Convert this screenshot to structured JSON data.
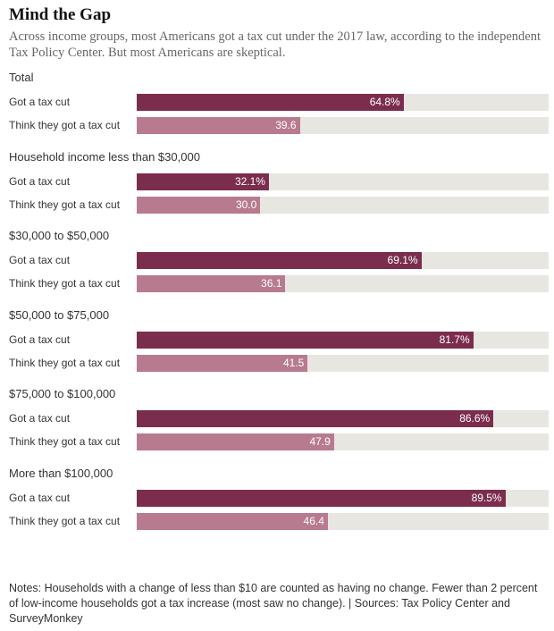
{
  "title": "Mind the Gap",
  "subtitle": "Across income groups, most Americans got a tax cut under the 2017 law, according to the independent Tax Policy Center. But most Americans are skeptical.",
  "notes": "Notes: Households with a change of less than $10 are counted as having no change. Fewer than 2 percent of low-income households got a tax increase (most saw no change). | Sources: Tax Policy Center and SurveyMonkey",
  "colors": {
    "got": "#7b2d4e",
    "think": "#b87a8f",
    "track": "#e8e6e1"
  },
  "chart_data": {
    "type": "bar",
    "orientation": "horizontal",
    "xlim": [
      0,
      100
    ],
    "series": [
      {
        "name": "Got a tax cut"
      },
      {
        "name": "Think they got a tax cut"
      }
    ],
    "groups": [
      {
        "name": "Total",
        "got": 64.8,
        "got_label": "64.8%",
        "think": 39.6,
        "think_label": "39.6"
      },
      {
        "name": "Household income less than $30,000",
        "got": 32.1,
        "got_label": "32.1%",
        "think": 30.0,
        "think_label": "30.0"
      },
      {
        "name": "$30,000 to $50,000",
        "got": 69.1,
        "got_label": "69.1%",
        "think": 36.1,
        "think_label": "36.1"
      },
      {
        "name": "$50,000 to $75,000",
        "got": 81.7,
        "got_label": "81.7%",
        "think": 41.5,
        "think_label": "41.5"
      },
      {
        "name": "$75,000 to $100,000",
        "got": 86.6,
        "got_label": "86.6%",
        "think": 47.9,
        "think_label": "47.9"
      },
      {
        "name": "More than $100,000",
        "got": 89.5,
        "got_label": "89.5%",
        "think": 46.4,
        "think_label": "46.4"
      }
    ]
  }
}
